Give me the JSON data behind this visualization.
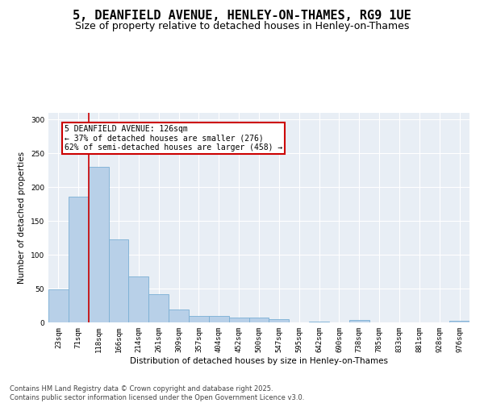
{
  "title": "5, DEANFIELD AVENUE, HENLEY-ON-THAMES, RG9 1UE",
  "subtitle": "Size of property relative to detached houses in Henley-on-Thames",
  "xlabel": "Distribution of detached houses by size in Henley-on-Thames",
  "ylabel": "Number of detached properties",
  "categories": [
    "23sqm",
    "71sqm",
    "118sqm",
    "166sqm",
    "214sqm",
    "261sqm",
    "309sqm",
    "357sqm",
    "404sqm",
    "452sqm",
    "500sqm",
    "547sqm",
    "595sqm",
    "642sqm",
    "690sqm",
    "738sqm",
    "785sqm",
    "833sqm",
    "881sqm",
    "928sqm",
    "976sqm"
  ],
  "values": [
    49,
    186,
    230,
    123,
    68,
    42,
    19,
    9,
    9,
    7,
    7,
    5,
    0,
    1,
    0,
    3,
    0,
    0,
    0,
    0,
    2
  ],
  "bar_color": "#b8d0e8",
  "bar_edge_color": "#7aafd4",
  "vline_x_index": 1.5,
  "vline_color": "#cc0000",
  "annotation_text": "5 DEANFIELD AVENUE: 126sqm\n← 37% of detached houses are smaller (276)\n62% of semi-detached houses are larger (458) →",
  "annotation_box_color": "#cc0000",
  "ylim": [
    0,
    310
  ],
  "yticks": [
    0,
    50,
    100,
    150,
    200,
    250,
    300
  ],
  "bg_color": "#e8eef5",
  "footer_text": "Contains HM Land Registry data © Crown copyright and database right 2025.\nContains public sector information licensed under the Open Government Licence v3.0.",
  "title_fontsize": 11,
  "subtitle_fontsize": 9,
  "axis_label_fontsize": 7.5,
  "tick_fontsize": 6.5,
  "annotation_fontsize": 7,
  "footer_fontsize": 6
}
